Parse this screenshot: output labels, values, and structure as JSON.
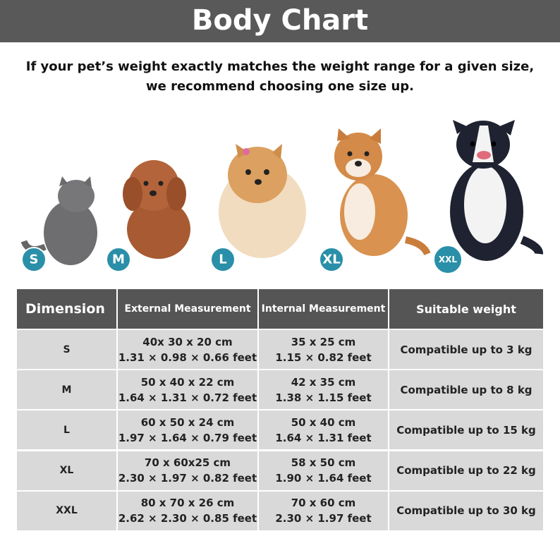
{
  "header": {
    "title": "Body Chart"
  },
  "note": [
    "If your pet’s weight exactly matches the weight range for a given size,",
    "we recommend choosing one size up."
  ],
  "pets": [
    "S",
    "M",
    "L",
    "XL",
    "XXL"
  ],
  "table": {
    "headers": [
      "Dimension",
      "External Measurement",
      "Internal Measurement",
      "Suitable weight"
    ],
    "rows": [
      [
        "S",
        [
          "40x 30 x 20 cm",
          "1.31 × 0.98 × 0.66 feet"
        ],
        [
          "35 x 25 cm",
          "1.15 × 0.82 feet"
        ],
        [
          "Compatible up to 3 kg"
        ]
      ],
      [
        "M",
        [
          "50 x 40 x 22 cm",
          "1.64 × 1.31 × 0.72 feet"
        ],
        [
          "42 x 35 cm",
          "1.38 × 1.15 feet"
        ],
        [
          "Compatible up to 8 kg"
        ]
      ],
      [
        "L",
        [
          "60 x 50 x 24 cm",
          "1.97 × 1.64 × 0.79 feet"
        ],
        [
          "50 x 40 cm",
          "1.64 × 1.31 feet"
        ],
        [
          "Compatible up to 15 kg"
        ]
      ],
      [
        "XL",
        [
          "70 x 60x25 cm",
          "2.30 × 1.97 × 0.82 feet"
        ],
        [
          "58 x 50 cm",
          "1.90 × 1.64 feet"
        ],
        [
          "Compatible up to 22 kg"
        ]
      ],
      [
        "XXL",
        [
          "80 x 70 x 26 cm",
          "2.62 × 2.30 × 0.85 feet"
        ],
        [
          "70 x 60 cm",
          "2.30 × 1.97 feet"
        ],
        [
          "Compatible up to 30 kg"
        ]
      ]
    ]
  }
}
